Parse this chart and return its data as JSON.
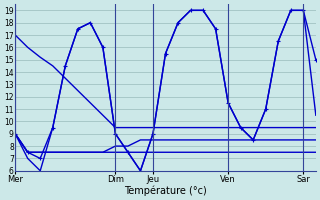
{
  "background_color": "#cce8e8",
  "grid_color": "#99bbbb",
  "line_color": "#0000cc",
  "xlabel": "Température (°c)",
  "ylim": [
    6,
    19.5
  ],
  "yticks": [
    6,
    7,
    8,
    9,
    10,
    11,
    12,
    13,
    14,
    15,
    16,
    17,
    18,
    19
  ],
  "day_labels": [
    "Mer",
    "",
    "Dim",
    "Jeu",
    "",
    "Ven",
    "",
    "Sar"
  ],
  "day_vline_labels": [
    "Mer",
    "Dim",
    "Jeu",
    "Ven",
    "Sar"
  ],
  "xlim": [
    0,
    24
  ],
  "n_points": 25,
  "series": {
    "s0_descend": {
      "x": [
        0,
        1,
        2,
        3,
        4,
        5,
        6,
        7,
        8,
        9,
        10,
        11,
        12,
        13,
        14,
        15,
        16,
        17,
        18,
        19,
        20,
        21,
        22,
        23,
        24
      ],
      "y": [
        17,
        16,
        15.2,
        14.5,
        13.5,
        12.5,
        11.5,
        10.5,
        9.5,
        9.5,
        9.5,
        9.5,
        9.5,
        9.5,
        9.5,
        9.5,
        9.5,
        9.5,
        9.5,
        9.5,
        9.5,
        9.5,
        9.5,
        9.5,
        9.5
      ],
      "marker": null,
      "lw": 1.0
    },
    "s1_main": {
      "x": [
        0,
        1,
        2,
        3,
        4,
        5,
        6,
        7,
        8,
        9,
        10,
        11,
        12,
        13,
        14,
        15,
        16,
        17,
        18,
        19,
        20,
        21,
        22,
        23,
        24
      ],
      "y": [
        9,
        7.5,
        7,
        9.5,
        14.5,
        17.5,
        18,
        16,
        9,
        7.5,
        6,
        9,
        15.5,
        18,
        19,
        19,
        17.5,
        11.5,
        9.5,
        8.5,
        11,
        16.5,
        19,
        19,
        15
      ],
      "marker": "+",
      "lw": 1.0
    },
    "s2_flat_rise": {
      "x": [
        0,
        1,
        2,
        3,
        4,
        5,
        6,
        7,
        8,
        9,
        10,
        11,
        12,
        13,
        14,
        15,
        16,
        17,
        18,
        19,
        20,
        21,
        22,
        23,
        24
      ],
      "y": [
        9,
        7.5,
        7.5,
        7.5,
        7.5,
        7.5,
        7.5,
        7.5,
        8,
        8,
        8.5,
        8.5,
        8.5,
        8.5,
        8.5,
        8.5,
        8.5,
        8.5,
        8.5,
        8.5,
        8.5,
        8.5,
        8.5,
        8.5,
        8.5
      ],
      "marker": null,
      "lw": 1.0
    },
    "s3_flat": {
      "x": [
        0,
        1,
        2,
        3,
        4,
        5,
        6,
        7,
        8,
        9,
        10,
        11,
        12,
        13,
        14,
        15,
        16,
        17,
        18,
        19,
        20,
        21,
        22,
        23,
        24
      ],
      "y": [
        9,
        7.5,
        7.5,
        7.5,
        7.5,
        7.5,
        7.5,
        7.5,
        7.5,
        7.5,
        7.5,
        7.5,
        7.5,
        7.5,
        7.5,
        7.5,
        7.5,
        7.5,
        7.5,
        7.5,
        7.5,
        7.5,
        7.5,
        7.5,
        7.5
      ],
      "marker": null,
      "lw": 1.0
    },
    "s4_second": {
      "x": [
        0,
        1,
        2,
        3,
        4,
        5,
        6,
        7,
        8,
        9,
        10,
        11,
        12,
        13,
        14,
        15,
        16,
        17,
        18,
        19,
        20,
        21,
        22,
        23,
        24
      ],
      "y": [
        9,
        7,
        6,
        9.5,
        14.5,
        17.5,
        18,
        16,
        9,
        7.5,
        6,
        9,
        15.5,
        18,
        19,
        19,
        17.5,
        11.5,
        9.5,
        8.5,
        11,
        16.5,
        19,
        19,
        10.5
      ],
      "marker": null,
      "lw": 1.0
    }
  },
  "vline_positions": [
    0,
    8,
    11,
    17,
    23
  ],
  "vline_color": "#334499",
  "xlabel_fontsize": 7,
  "tick_fontsize": 5.5
}
